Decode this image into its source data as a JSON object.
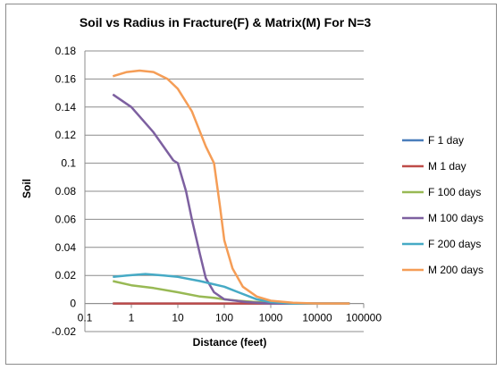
{
  "chart_data": {
    "type": "line",
    "title": "Soil vs Radius in Fracture(F) & Matrix(M)  For N=3",
    "xlabel": "Distance  (feet)",
    "ylabel": "Soil",
    "x_scale": "log",
    "xlim": [
      0.1,
      100000
    ],
    "ylim": [
      -0.02,
      0.18
    ],
    "x_tick_labels": [
      "0.1",
      "1",
      "10",
      "100",
      "1000",
      "10000",
      "100000"
    ],
    "y_tick_labels": [
      "-0.02",
      "0",
      "0.02",
      "0.04",
      "0.06",
      "0.08",
      "0.1",
      "0.12",
      "0.14",
      "0.16",
      "0.18"
    ],
    "y_ticks": [
      -0.02,
      0,
      0.02,
      0.04,
      0.06,
      0.08,
      0.1,
      0.12,
      0.14,
      0.16,
      0.18
    ],
    "grid": "horizontal",
    "legend_position": "right",
    "series": [
      {
        "name": "F 1 day",
        "color": "#4a7ebb",
        "points": [
          [
            0.4,
            0
          ],
          [
            1,
            0
          ],
          [
            10,
            0
          ],
          [
            100,
            0
          ],
          [
            1000,
            0
          ],
          [
            10000,
            0
          ],
          [
            50000,
            0
          ]
        ]
      },
      {
        "name": "M 1 day",
        "color": "#be4b48",
        "points": [
          [
            0.4,
            0
          ],
          [
            1,
            0
          ],
          [
            10,
            0
          ],
          [
            100,
            0
          ],
          [
            1000,
            0
          ],
          [
            10000,
            0
          ],
          [
            50000,
            0
          ]
        ]
      },
      {
        "name": "F 100 days",
        "color": "#98b954",
        "points": [
          [
            0.4,
            0.016
          ],
          [
            1,
            0.013
          ],
          [
            3,
            0.011
          ],
          [
            10,
            0.008
          ],
          [
            30,
            0.005
          ],
          [
            60,
            0.004
          ],
          [
            100,
            0.003
          ],
          [
            200,
            0.002
          ],
          [
            500,
            0.001
          ],
          [
            1000,
            0.0005
          ],
          [
            3000,
            0
          ],
          [
            50000,
            0
          ]
        ]
      },
      {
        "name": "M 100 days",
        "color": "#7d60a0",
        "points": [
          [
            0.4,
            0.149
          ],
          [
            1,
            0.14
          ],
          [
            3,
            0.122
          ],
          [
            8,
            0.102
          ],
          [
            10,
            0.1
          ],
          [
            15,
            0.08
          ],
          [
            20,
            0.06
          ],
          [
            30,
            0.035
          ],
          [
            40,
            0.018
          ],
          [
            60,
            0.008
          ],
          [
            100,
            0.003
          ],
          [
            300,
            0.001
          ],
          [
            1000,
            0
          ],
          [
            50000,
            0
          ]
        ]
      },
      {
        "name": "F 200 days",
        "color": "#46aac5",
        "points": [
          [
            0.4,
            0.019
          ],
          [
            0.8,
            0.02
          ],
          [
            2,
            0.021
          ],
          [
            5,
            0.02
          ],
          [
            10,
            0.019
          ],
          [
            30,
            0.016
          ],
          [
            100,
            0.012
          ],
          [
            200,
            0.008
          ],
          [
            500,
            0.003
          ],
          [
            1000,
            0.001
          ],
          [
            3000,
            0
          ],
          [
            50000,
            0
          ]
        ]
      },
      {
        "name": "M 200 days",
        "color": "#f59d56",
        "points": [
          [
            0.4,
            0.162
          ],
          [
            0.8,
            0.165
          ],
          [
            1.5,
            0.166
          ],
          [
            3,
            0.165
          ],
          [
            6,
            0.16
          ],
          [
            10,
            0.153
          ],
          [
            20,
            0.137
          ],
          [
            40,
            0.112
          ],
          [
            60,
            0.1
          ],
          [
            80,
            0.07
          ],
          [
            100,
            0.045
          ],
          [
            150,
            0.025
          ],
          [
            250,
            0.012
          ],
          [
            500,
            0.005
          ],
          [
            1000,
            0.002
          ],
          [
            3000,
            0.0005
          ],
          [
            10000,
            0
          ],
          [
            50000,
            0
          ]
        ]
      }
    ]
  }
}
